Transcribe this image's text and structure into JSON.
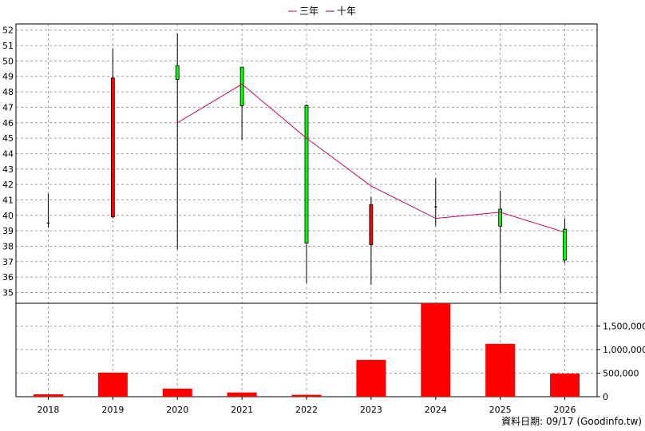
{
  "chart_data": {
    "type": "candlestick",
    "legend": [
      {
        "name": "三年",
        "color": "#cc0066"
      },
      {
        "name": "十年",
        "color": "#660099"
      }
    ],
    "categories": [
      "2018",
      "2019",
      "2020",
      "2021",
      "2022",
      "2023",
      "2024",
      "2025",
      "2026"
    ],
    "price_axis": {
      "ticks": [
        "35",
        "36",
        "37",
        "38",
        "39",
        "40",
        "41",
        "42",
        "43",
        "44",
        "45",
        "46",
        "47",
        "48",
        "49",
        "50",
        "51",
        "52"
      ],
      "ylim": [
        34.3,
        52.4
      ]
    },
    "ohlc": [
      {
        "year": "2018",
        "open": 39.5,
        "high": 41.4,
        "low": 39.2,
        "close": 39.5
      },
      {
        "year": "2019",
        "open": 39.9,
        "high": 50.8,
        "low": 39.8,
        "close": 48.9
      },
      {
        "year": "2020",
        "open": 49.7,
        "high": 51.8,
        "low": 37.8,
        "close": 48.8
      },
      {
        "year": "2021",
        "open": 49.6,
        "high": 49.6,
        "low": 44.9,
        "close": 47.1
      },
      {
        "year": "2022",
        "open": 47.1,
        "high": 47.2,
        "low": 35.6,
        "close": 38.2
      },
      {
        "year": "2023",
        "open": 38.1,
        "high": 41.2,
        "low": 35.5,
        "close": 40.7
      },
      {
        "year": "2024",
        "open": 40.55,
        "high": 42.4,
        "low": 39.3,
        "close": 40.55
      },
      {
        "year": "2025",
        "open": 40.4,
        "high": 41.6,
        "low": 35.0,
        "close": 39.3
      },
      {
        "year": "2026",
        "open": 39.1,
        "high": 39.8,
        "low": 36.9,
        "close": 37.1
      }
    ],
    "colors": {
      "up": "#ff0000",
      "down": "#00ff00",
      "wick": "#000000",
      "volume": "#ff0000"
    },
    "three_year_line": {
      "x": [
        "2020",
        "2021",
        "2022",
        "2023",
        "2024",
        "2025",
        "2026"
      ],
      "values": [
        46.0,
        48.5,
        45.0,
        41.9,
        39.8,
        40.2,
        38.9
      ]
    },
    "volume": {
      "values": [
        50000,
        510000,
        170000,
        90000,
        40000,
        780000,
        1980000,
        1120000,
        490000
      ],
      "ticks": [
        "0",
        "500,000",
        "1,000,000",
        "1,500,000"
      ],
      "ylim": [
        0,
        1980000
      ]
    },
    "grid": true
  },
  "footer": {
    "text": "資料日期: 09/17  (Goodinfo.tw)"
  }
}
